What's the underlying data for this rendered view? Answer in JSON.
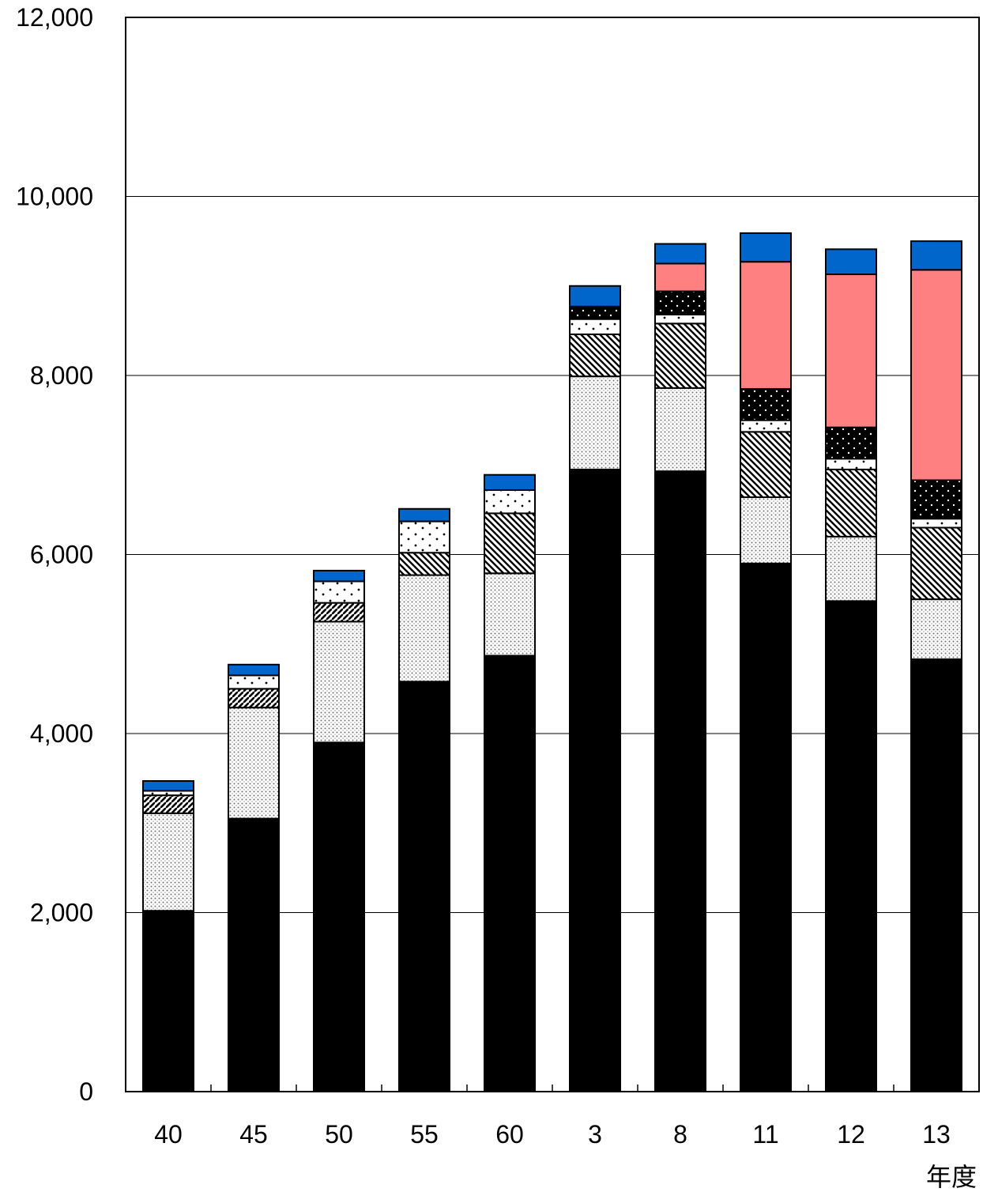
{
  "chart_data": {
    "type": "bar",
    "stacked": true,
    "categories": [
      "40",
      "45",
      "50",
      "55",
      "60",
      "3",
      "8",
      "11",
      "12",
      "13"
    ],
    "xunit": "年度",
    "ylim": [
      0,
      12000
    ],
    "yticks": [
      0,
      2000,
      4000,
      6000,
      8000,
      10000,
      12000
    ],
    "ytick_labels": [
      "0",
      "2,000",
      "4,000",
      "6,000",
      "8,000",
      "10,000",
      "12,000"
    ],
    "grid": true,
    "series": [
      {
        "key": "s1",
        "pattern": "solid-black",
        "color": "#000000",
        "values": [
          2020,
          3050,
          3900,
          4580,
          4870,
          6950,
          6930,
          5900,
          5480,
          4830
        ]
      },
      {
        "key": "s2",
        "pattern": "fine-dots",
        "color": "#808080",
        "values": [
          1090,
          1240,
          1350,
          1190,
          920,
          1040,
          930,
          740,
          720,
          670
        ]
      },
      {
        "key": "s3",
        "pattern": "diagonal-wide",
        "color": "#000000",
        "values": [
          200,
          210,
          210,
          250,
          670,
          470,
          720,
          730,
          750,
          800
        ]
      },
      {
        "key": "s4",
        "pattern": "sparse-dots",
        "color": "#000000",
        "values": [
          50,
          150,
          240,
          350,
          260,
          170,
          100,
          130,
          120,
          100
        ]
      },
      {
        "key": "s5",
        "pattern": "dark-dots",
        "color": "#000000",
        "values": [
          0,
          0,
          0,
          0,
          0,
          140,
          260,
          350,
          350,
          430
        ]
      },
      {
        "key": "s6",
        "pattern": "salmon",
        "color": "#ff8080",
        "values": [
          0,
          0,
          0,
          0,
          0,
          0,
          310,
          1420,
          1710,
          2350
        ]
      },
      {
        "key": "s7",
        "pattern": "solid-blue",
        "color": "#0066cc",
        "values": [
          110,
          120,
          120,
          140,
          170,
          230,
          220,
          320,
          280,
          320
        ]
      }
    ]
  }
}
